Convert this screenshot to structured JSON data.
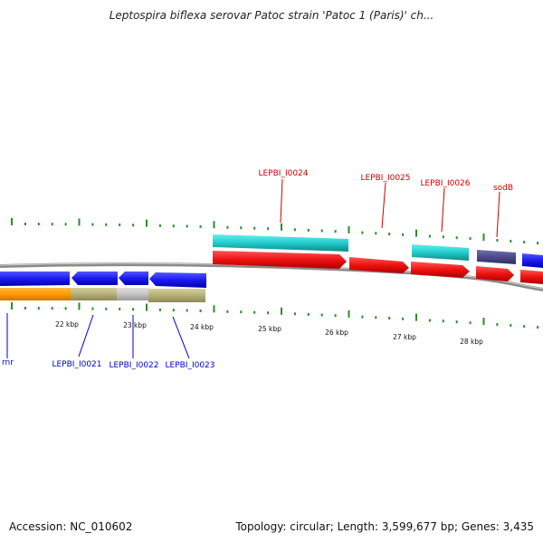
{
  "title": "Leptospira biflexa serovar Patoc strain 'Patoc 1 (Paris)' ch...",
  "footer": {
    "accession_label": "Accession:",
    "accession": "NC_010602",
    "topology_label": "Topology:",
    "topology": "circular",
    "length_label": "Length:",
    "length": "3,599,677 bp",
    "genes_label": "Genes:",
    "genes": "3,435"
  },
  "scale_labels": [
    "22 kbp",
    "23 kbp",
    "24 kbp",
    "25 kbp",
    "26 kbp",
    "27 kbp",
    "28 kbp"
  ],
  "gene_labels_top": [
    "LEPBI_I0024",
    "LEPBI_I0025",
    "LEPBI_I0026",
    "sodB"
  ],
  "gene_labels_bottom": [
    "rnr",
    "LEPBI_I0021",
    "LEPBI_I0022",
    "LEPBI_I0023"
  ],
  "colors": {
    "top_label": "#cc0000",
    "bottom_label": "#0000cc",
    "tick": "#2e8b2e",
    "cds_blue": "#1a1aee",
    "cds_red": "#ee1111",
    "gene_cyan": "#22cccc",
    "gene_orange": "#ff9900",
    "gene_olive": "#b5b07a",
    "gene_grey": "#c4c4c4",
    "gene_purple": "#4b4a8a",
    "backbone": "#8a8a8a"
  }
}
